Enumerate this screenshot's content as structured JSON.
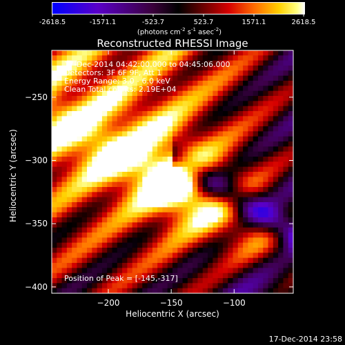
{
  "colorbar": {
    "tick_labels": [
      "-2618.5",
      "-1571.1",
      "-523.7",
      "523.7",
      "1571.1",
      "2618.5"
    ],
    "unit_label": "(photons cm",
    "unit_exp1": "-2",
    "unit_mid": " s",
    "unit_exp2": "-1",
    "unit_end": " asec",
    "unit_exp3": "-2",
    "unit_close": ")"
  },
  "plot": {
    "title": "Reconstructed RHESSI Image",
    "info_lines": [
      "17-Dec-2014 04:42:00.000 to 04:45:06.000",
      "Detectors: 3F 6F 9F, Att 1",
      "Energy Range: 3.0 - 6.0 keV",
      "Clean    Total counts: 2.19E+04"
    ],
    "peak_label": "Position of Peak = [-145,-317]"
  },
  "chart_data": {
    "type": "heatmap",
    "title": "Reconstructed RHESSI Image",
    "xlabel": "Heliocentric X (arcsec)",
    "ylabel": "Heliocentric Y (arcsec)",
    "xlim": [
      -245,
      -53
    ],
    "ylim": [
      -405,
      -213
    ],
    "x_ticks": [
      -200,
      -150,
      -100
    ],
    "y_ticks": [
      -250,
      -300,
      -350,
      -400
    ],
    "colorbar_range": [
      -2618.5,
      2618.5
    ],
    "peak": [
      -145,
      -317
    ],
    "colors": {
      "neg": "#0000ff",
      "mid": "#000000",
      "pos1": "#ff0000",
      "pos2": "#ffff00",
      "pos3": "#ffffff"
    }
  },
  "footer": {
    "timestamp": "17-Dec-2014 23:58"
  }
}
